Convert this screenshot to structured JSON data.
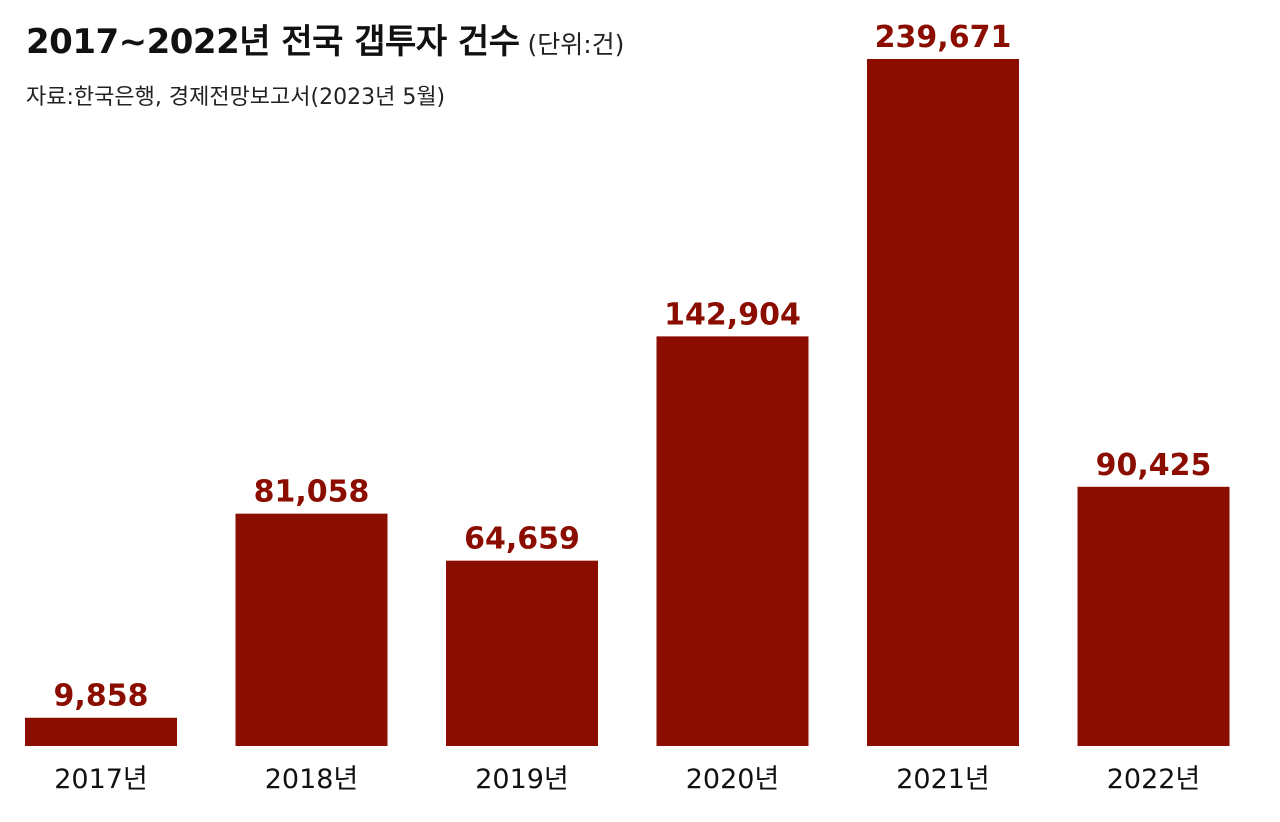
{
  "header": {
    "title": "2017~2022년 전국 갭투자 건수",
    "unit": "(단위:건)",
    "source": "자료:한국은행, 경제전망보고서(2023년 5월)"
  },
  "chart_data": {
    "type": "bar",
    "title": "2017~2022년 전국 갭투자 건수",
    "unit": "(단위:건)",
    "categories": [
      "2017년",
      "2018년",
      "2019년",
      "2020년",
      "2021년",
      "2022년"
    ],
    "values": [
      9858,
      81058,
      64659,
      142904,
      239671,
      90425
    ],
    "value_labels": [
      "9,858",
      "81,058",
      "64,659",
      "142,904",
      "239,671",
      "90,425"
    ],
    "ylim": [
      0,
      239671
    ],
    "grid": false,
    "legend": "none",
    "bar_color": "#8b0d00"
  }
}
